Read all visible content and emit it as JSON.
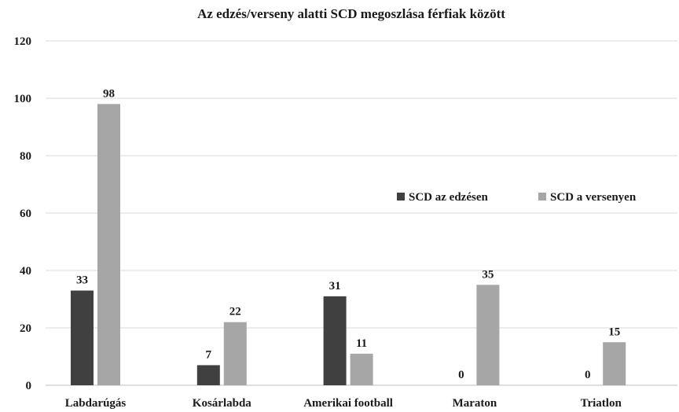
{
  "chart_data": {
    "type": "bar",
    "title": "Az edzés/verseny alatti SCD megoszlása férfiak között",
    "categories": [
      "Labdarúgás",
      "Kosárlabda",
      "Amerikai football",
      "Maraton",
      "Triatlon"
    ],
    "series": [
      {
        "name": "SCD az edzésen",
        "color": "#404040",
        "values": [
          33,
          7,
          31,
          0,
          0
        ]
      },
      {
        "name": "SCD a versenyen",
        "color": "#a6a6a6",
        "values": [
          98,
          22,
          11,
          35,
          15
        ]
      }
    ],
    "ylim": [
      0,
      120
    ],
    "yticks": [
      0,
      20,
      40,
      60,
      80,
      100,
      120
    ],
    "grid": true,
    "data_labels": true,
    "legend_position": "right-middle",
    "xlabel": "",
    "ylabel": ""
  }
}
